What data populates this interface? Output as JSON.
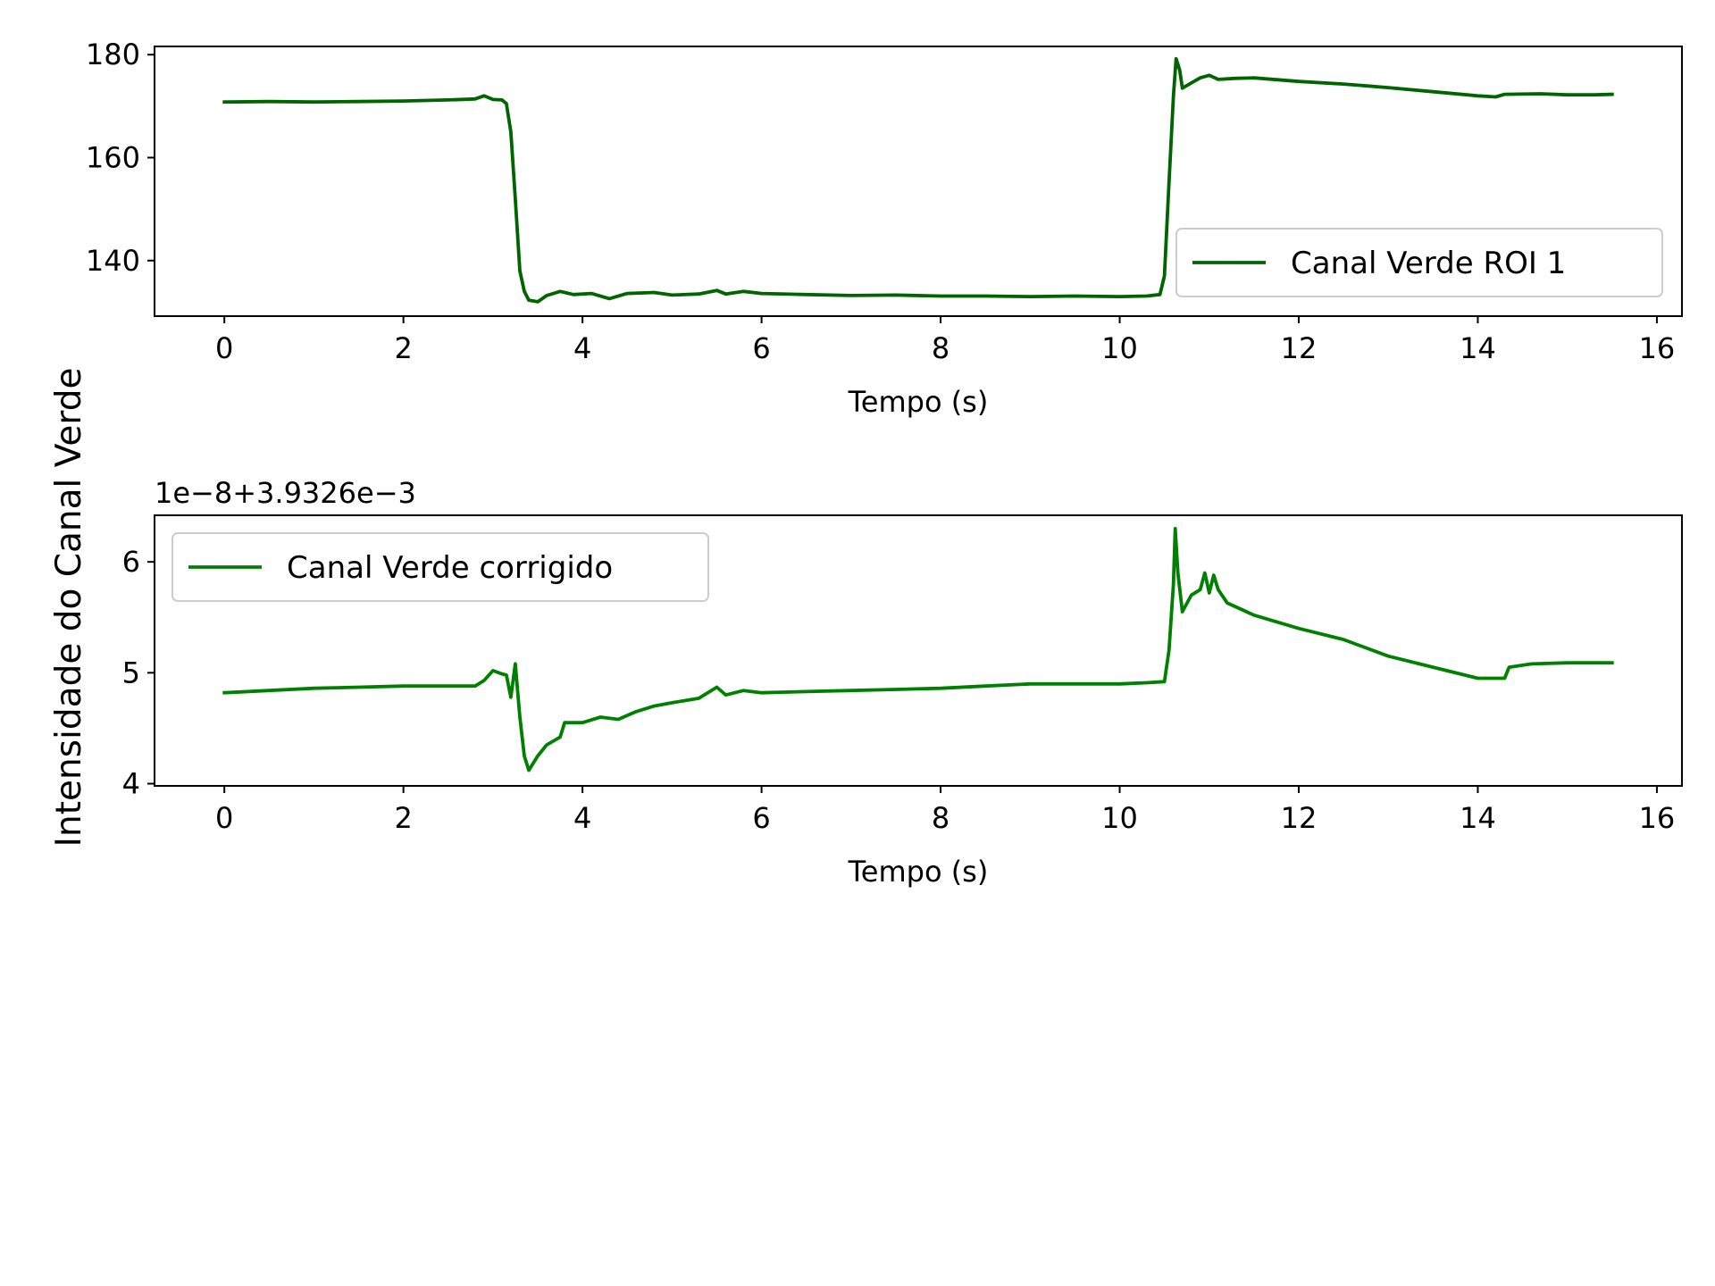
{
  "figure": {
    "shared_ylabel": "Intensidade do Canal Verde"
  },
  "chart_data": [
    {
      "type": "line",
      "title": "",
      "xlabel": "Tempo (s)",
      "ylabel": "",
      "xlim": [
        -0.78,
        16.28
      ],
      "ylim": [
        129.2,
        181.6
      ],
      "xticks": [
        0,
        2,
        4,
        6,
        8,
        10,
        12,
        14,
        16
      ],
      "yticks": [
        140,
        160,
        180
      ],
      "grid": false,
      "legend_position": "lower-right",
      "series": [
        {
          "name": "Canal Verde ROI 1",
          "color": "#006400",
          "points": [
            [
              0.0,
              170.8
            ],
            [
              0.5,
              170.9
            ],
            [
              1.0,
              170.8
            ],
            [
              1.5,
              170.9
            ],
            [
              2.0,
              171.0
            ],
            [
              2.5,
              171.2
            ],
            [
              2.8,
              171.4
            ],
            [
              2.9,
              172.0
            ],
            [
              3.0,
              171.3
            ],
            [
              3.1,
              171.2
            ],
            [
              3.15,
              170.5
            ],
            [
              3.2,
              165.0
            ],
            [
              3.25,
              152.0
            ],
            [
              3.3,
              138.0
            ],
            [
              3.35,
              134.0
            ],
            [
              3.4,
              132.3
            ],
            [
              3.5,
              132.0
            ],
            [
              3.6,
              133.2
            ],
            [
              3.75,
              134.0
            ],
            [
              3.9,
              133.4
            ],
            [
              4.1,
              133.6
            ],
            [
              4.3,
              132.6
            ],
            [
              4.5,
              133.6
            ],
            [
              4.8,
              133.8
            ],
            [
              5.0,
              133.3
            ],
            [
              5.3,
              133.5
            ],
            [
              5.5,
              134.2
            ],
            [
              5.6,
              133.5
            ],
            [
              5.8,
              134.0
            ],
            [
              6.0,
              133.6
            ],
            [
              6.5,
              133.4
            ],
            [
              7.0,
              133.2
            ],
            [
              7.5,
              133.3
            ],
            [
              8.0,
              133.1
            ],
            [
              8.5,
              133.1
            ],
            [
              9.0,
              133.0
            ],
            [
              9.5,
              133.1
            ],
            [
              10.0,
              133.0
            ],
            [
              10.3,
              133.1
            ],
            [
              10.45,
              133.4
            ],
            [
              10.5,
              137.0
            ],
            [
              10.55,
              155.0
            ],
            [
              10.6,
              172.0
            ],
            [
              10.63,
              179.2
            ],
            [
              10.67,
              177.0
            ],
            [
              10.7,
              173.5
            ],
            [
              10.8,
              174.5
            ],
            [
              10.9,
              175.5
            ],
            [
              11.0,
              176.0
            ],
            [
              11.1,
              175.2
            ],
            [
              11.3,
              175.4
            ],
            [
              11.5,
              175.5
            ],
            [
              12.0,
              174.8
            ],
            [
              12.5,
              174.3
            ],
            [
              13.0,
              173.6
            ],
            [
              13.5,
              172.8
            ],
            [
              14.0,
              172.0
            ],
            [
              14.2,
              171.8
            ],
            [
              14.3,
              172.3
            ],
            [
              14.7,
              172.4
            ],
            [
              15.0,
              172.2
            ],
            [
              15.3,
              172.2
            ],
            [
              15.5,
              172.3
            ]
          ]
        }
      ]
    },
    {
      "type": "line",
      "title": "",
      "xlabel": "Tempo (s)",
      "ylabel": "",
      "offset_text": "1e−8+3.9326e−3",
      "xlim": [
        -0.78,
        16.28
      ],
      "ylim": [
        3.98,
        6.42
      ],
      "xticks": [
        0,
        2,
        4,
        6,
        8,
        10,
        12,
        14,
        16
      ],
      "yticks": [
        4,
        5,
        6
      ],
      "grid": false,
      "legend_position": "upper-left",
      "series": [
        {
          "name": "Canal Verde corrigido",
          "color": "#008000",
          "points": [
            [
              0.0,
              4.82
            ],
            [
              0.5,
              4.84
            ],
            [
              1.0,
              4.86
            ],
            [
              1.5,
              4.87
            ],
            [
              2.0,
              4.88
            ],
            [
              2.5,
              4.88
            ],
            [
              2.8,
              4.88
            ],
            [
              2.9,
              4.93
            ],
            [
              3.0,
              5.02
            ],
            [
              3.1,
              4.99
            ],
            [
              3.15,
              4.98
            ],
            [
              3.2,
              4.78
            ],
            [
              3.25,
              5.08
            ],
            [
              3.3,
              4.6
            ],
            [
              3.35,
              4.25
            ],
            [
              3.4,
              4.12
            ],
            [
              3.5,
              4.25
            ],
            [
              3.6,
              4.35
            ],
            [
              3.75,
              4.42
            ],
            [
              3.8,
              4.55
            ],
            [
              4.0,
              4.55
            ],
            [
              4.2,
              4.6
            ],
            [
              4.4,
              4.58
            ],
            [
              4.6,
              4.65
            ],
            [
              4.8,
              4.7
            ],
            [
              5.0,
              4.73
            ],
            [
              5.3,
              4.77
            ],
            [
              5.5,
              4.87
            ],
            [
              5.6,
              4.8
            ],
            [
              5.8,
              4.84
            ],
            [
              6.0,
              4.82
            ],
            [
              6.5,
              4.83
            ],
            [
              7.0,
              4.84
            ],
            [
              7.5,
              4.85
            ],
            [
              8.0,
              4.86
            ],
            [
              8.5,
              4.88
            ],
            [
              9.0,
              4.9
            ],
            [
              9.5,
              4.9
            ],
            [
              10.0,
              4.9
            ],
            [
              10.3,
              4.91
            ],
            [
              10.5,
              4.92
            ],
            [
              10.55,
              5.2
            ],
            [
              10.6,
              5.8
            ],
            [
              10.62,
              6.3
            ],
            [
              10.65,
              5.9
            ],
            [
              10.7,
              5.55
            ],
            [
              10.8,
              5.7
            ],
            [
              10.9,
              5.75
            ],
            [
              10.95,
              5.9
            ],
            [
              11.0,
              5.72
            ],
            [
              11.05,
              5.88
            ],
            [
              11.1,
              5.75
            ],
            [
              11.2,
              5.63
            ],
            [
              11.5,
              5.52
            ],
            [
              12.0,
              5.4
            ],
            [
              12.5,
              5.3
            ],
            [
              13.0,
              5.15
            ],
            [
              13.5,
              5.05
            ],
            [
              14.0,
              4.95
            ],
            [
              14.3,
              4.95
            ],
            [
              14.35,
              5.05
            ],
            [
              14.6,
              5.08
            ],
            [
              15.0,
              5.09
            ],
            [
              15.5,
              5.09
            ]
          ]
        }
      ]
    }
  ]
}
